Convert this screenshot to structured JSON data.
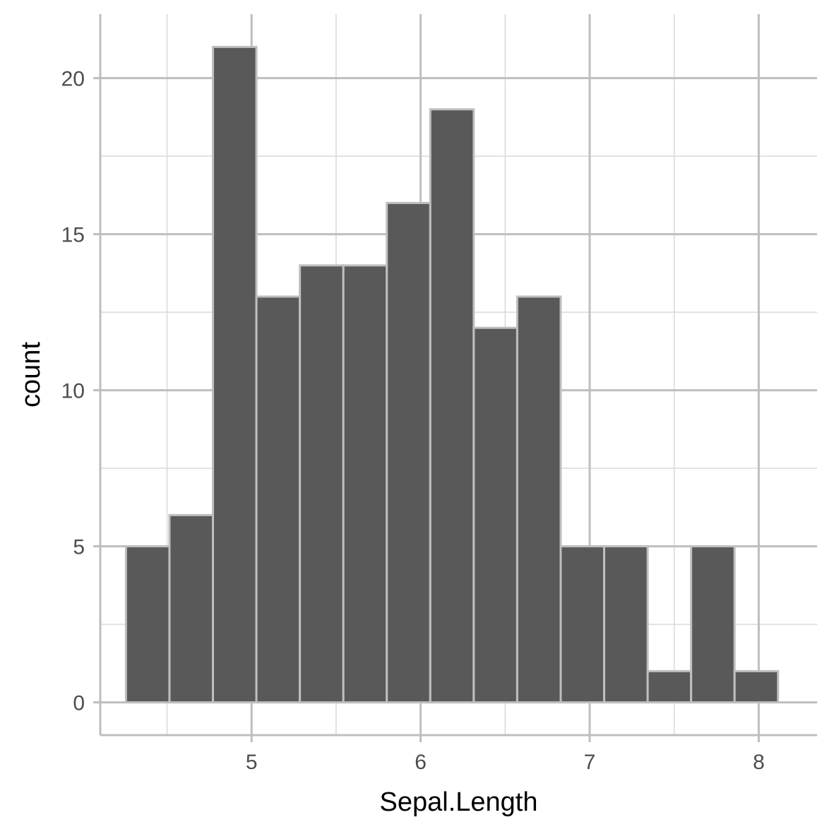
{
  "chart_data": {
    "type": "bar",
    "title": "",
    "xlabel": "Sepal.Length",
    "ylabel": "count",
    "xlim": [
      4.105,
      8.345
    ],
    "ylim": [
      -1.05,
      22.05
    ],
    "x_ticks": [
      5,
      6,
      7,
      8
    ],
    "x_minor_ticks": [
      4.5,
      5.5,
      6.5,
      7.5
    ],
    "y_ticks": [
      0,
      5,
      10,
      15,
      20
    ],
    "y_minor_ticks": [
      2.5,
      7.5,
      12.5,
      17.5
    ],
    "x_tick_labels": [
      "5",
      "6",
      "7",
      "8"
    ],
    "y_tick_labels": [
      "0",
      "5",
      "10",
      "15",
      "20"
    ],
    "bin_width": 0.2571,
    "bins": [
      {
        "x0": 4.2571,
        "x1": 4.5143,
        "count": 5
      },
      {
        "x0": 4.5143,
        "x1": 4.7714,
        "count": 6
      },
      {
        "x0": 4.7714,
        "x1": 5.0286,
        "count": 21
      },
      {
        "x0": 5.0286,
        "x1": 5.2857,
        "count": 13
      },
      {
        "x0": 5.2857,
        "x1": 5.5429,
        "count": 14
      },
      {
        "x0": 5.5429,
        "x1": 5.8,
        "count": 14
      },
      {
        "x0": 5.8,
        "x1": 6.0571,
        "count": 16
      },
      {
        "x0": 6.0571,
        "x1": 6.3143,
        "count": 19
      },
      {
        "x0": 6.3143,
        "x1": 6.5714,
        "count": 12
      },
      {
        "x0": 6.5714,
        "x1": 6.8286,
        "count": 13
      },
      {
        "x0": 6.8286,
        "x1": 7.0857,
        "count": 5
      },
      {
        "x0": 7.0857,
        "x1": 7.3429,
        "count": 5
      },
      {
        "x0": 7.3429,
        "x1": 7.6,
        "count": 1
      },
      {
        "x0": 7.6,
        "x1": 7.8571,
        "count": 5
      },
      {
        "x0": 7.8571,
        "x1": 8.1143,
        "count": 1
      }
    ],
    "grid": true,
    "legend": "none",
    "colors": {
      "bar_fill": "#595959",
      "bar_outline": "#bfbfbf",
      "grid_major": "#bebebe",
      "grid_minor": "#d9d9d9",
      "axis_line": "#bebebe",
      "tick_text": "#4d4d4d",
      "title_text": "#000000"
    }
  }
}
